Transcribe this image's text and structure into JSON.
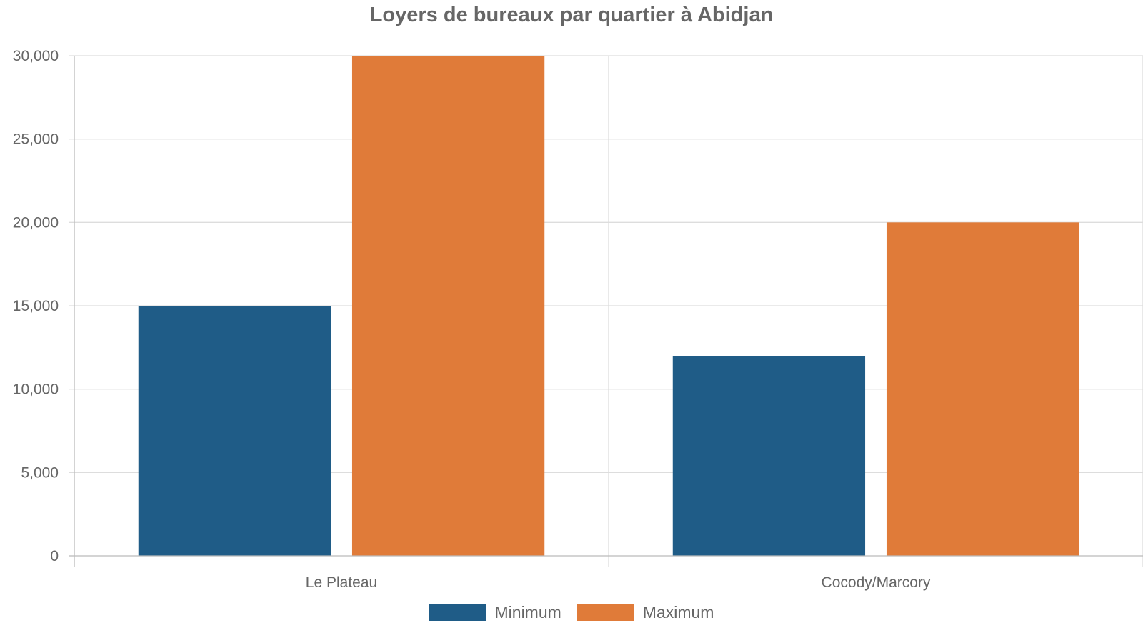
{
  "chart_data": {
    "type": "bar",
    "title": "Loyers de bureaux par quartier à Abidjan",
    "xlabel": "",
    "ylabel": "",
    "categories": [
      "Le Plateau",
      "Cocody/Marcory"
    ],
    "series": [
      {
        "name": "Minimum",
        "color": "#1f5c87",
        "values": [
          15000,
          12000
        ]
      },
      {
        "name": "Maximum",
        "color": "#e07b39",
        "values": [
          30000,
          20000
        ]
      }
    ],
    "ylim": [
      0,
      30000
    ],
    "yticks": [
      0,
      5000,
      10000,
      15000,
      20000,
      25000,
      30000
    ],
    "ytick_labels": [
      "0",
      "5,000",
      "10,000",
      "15,000",
      "20,000",
      "25,000",
      "30,000"
    ],
    "grid": true,
    "legend_position": "bottom"
  }
}
